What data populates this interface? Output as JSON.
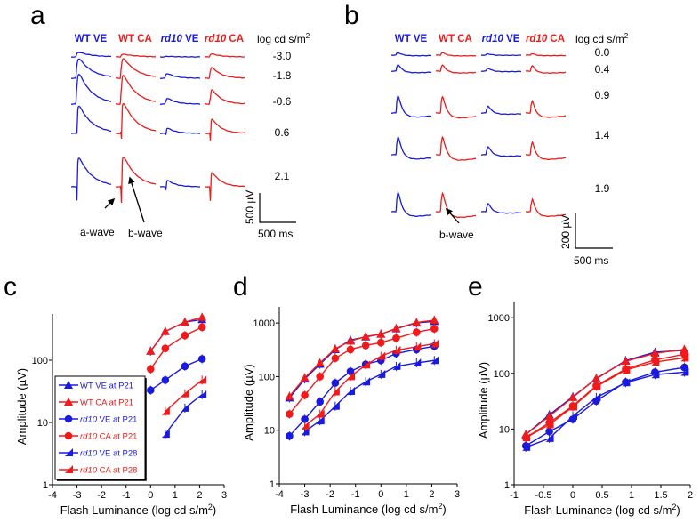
{
  "colors": {
    "blue": "#1a1adf",
    "red": "#f01a1a",
    "black": "#000000"
  },
  "panels": {
    "a": {
      "letter": "a",
      "headers": [
        {
          "italic": "",
          "text": "WT VE",
          "color": "#1a1adf"
        },
        {
          "italic": "",
          "text": "WT CA",
          "color": "#f01a1a"
        },
        {
          "italic": "rd10",
          "text": " VE",
          "color": "#1a1adf"
        },
        {
          "italic": "rd10",
          "text": " CA",
          "color": "#f01a1a"
        }
      ],
      "unit_label": "log cd s/m",
      "unit_sup": "2",
      "levels": [
        "-3.0",
        "-1.8",
        "-0.6",
        "0.6",
        "2.1"
      ],
      "annotations": [
        "a-wave",
        "b-wave"
      ],
      "scale_v": "500 µV",
      "scale_h": "500 ms"
    },
    "b": {
      "letter": "b",
      "headers": [
        {
          "italic": "",
          "text": "WT VE",
          "color": "#1a1adf"
        },
        {
          "italic": "",
          "text": "WT CA",
          "color": "#f01a1a"
        },
        {
          "italic": "rd10",
          "text": " VE",
          "color": "#1a1adf"
        },
        {
          "italic": "rd10",
          "text": " CA",
          "color": "#f01a1a"
        }
      ],
      "unit_label": "log cd s/m",
      "unit_sup": "2",
      "levels": [
        "0.0",
        "0.4",
        "0.9",
        "1.4",
        "1.9"
      ],
      "annotations": [
        "b-wave"
      ],
      "scale_v": "200 µV",
      "scale_h": "500 ms"
    }
  },
  "chart_data": [
    {
      "panel": "c",
      "type": "line",
      "yscale": "log",
      "xlabel": "Flash Luminance (log cd s/m",
      "xlabel_sup": "2",
      "xlabel_end": ")",
      "ylabel": "Amplitude (µV)",
      "xlim": [
        -4,
        3
      ],
      "ylim": [
        1,
        570
      ],
      "xticks": [
        "-4",
        "-3",
        "-2",
        "-1",
        "0",
        "1",
        "2",
        "3"
      ],
      "yticks": [
        "1",
        "10",
        "100"
      ],
      "legend": "bottom-left",
      "series": [
        {
          "name": "WT VE at P21",
          "italic": "",
          "label": "WT VE at P21",
          "color": "#1a1adf",
          "marker": "triangle",
          "x": [
            0,
            0.6,
            1.4,
            2.1
          ],
          "y": [
            140,
            290,
            410,
            450
          ]
        },
        {
          "name": "WT CA at P21",
          "italic": "",
          "label": "WT CA at P21",
          "color": "#f01a1a",
          "marker": "triangle",
          "x": [
            0,
            0.6,
            1.4,
            2.1
          ],
          "y": [
            140,
            290,
            410,
            490
          ]
        },
        {
          "name": "rd10 VE at P21",
          "italic": "rd10",
          "label": " VE at P21",
          "color": "#1a1adf",
          "marker": "circle",
          "x": [
            0,
            0.6,
            1.4,
            2.1
          ],
          "y": [
            33,
            48,
            80,
            105
          ]
        },
        {
          "name": "rd10 CA at P21",
          "italic": "rd10",
          "label": " CA at P21",
          "color": "#f01a1a",
          "marker": "circle",
          "x": [
            0,
            0.6,
            1.4,
            2.1
          ],
          "y": [
            72,
            155,
            250,
            340
          ]
        },
        {
          "name": "rd10 VE at P28",
          "italic": "rd10",
          "label": " VE at P28",
          "color": "#1a1adf",
          "marker": "flag",
          "x": [
            0.6,
            1.4,
            2.1
          ],
          "y": [
            6.5,
            17,
            28
          ]
        },
        {
          "name": "rd10 CA at P28",
          "italic": "rd10",
          "label": " CA at P28",
          "color": "#f01a1a",
          "marker": "flag",
          "x": [
            0.6,
            1.4,
            2.1
          ],
          "y": [
            15,
            29,
            48
          ]
        }
      ]
    },
    {
      "panel": "d",
      "type": "line",
      "yscale": "log",
      "xlabel": "Flash Luminance (log cd s/m",
      "xlabel_sup": "2",
      "xlabel_end": ")",
      "ylabel": "Amplitude (µV)",
      "xlim": [
        -4,
        3
      ],
      "ylim": [
        1,
        2000
      ],
      "xticks": [
        "-4",
        "-3",
        "-2",
        "-1",
        "0",
        "1",
        "2",
        "3"
      ],
      "yticks": [
        "1",
        "10",
        "100",
        "1000"
      ],
      "series": [
        {
          "name": "WT VE at P21",
          "color": "#1a1adf",
          "marker": "triangle",
          "x": [
            -3.6,
            -3,
            -2.4,
            -1.8,
            -1.2,
            -0.6,
            0,
            0.6,
            1.4,
            2.1
          ],
          "y": [
            40,
            90,
            170,
            320,
            480,
            550,
            620,
            780,
            1000,
            1070
          ]
        },
        {
          "name": "WT CA at P21",
          "color": "#f01a1a",
          "marker": "triangle",
          "x": [
            -3.6,
            -3,
            -2.4,
            -1.8,
            -1.2,
            -0.6,
            0,
            0.6,
            1.4,
            2.1
          ],
          "y": [
            43,
            95,
            180,
            330,
            460,
            560,
            620,
            790,
            1020,
            1130
          ]
        },
        {
          "name": "rd10 VE at P21",
          "color": "#1a1adf",
          "marker": "circle",
          "x": [
            -3.6,
            -3,
            -2.4,
            -1.8,
            -1.2,
            -0.6,
            0,
            0.6,
            1.4,
            2.1
          ],
          "y": [
            7.8,
            16,
            34,
            76,
            125,
            170,
            200,
            270,
            320,
            370
          ]
        },
        {
          "name": "rd10 CA at P21",
          "color": "#f01a1a",
          "marker": "circle",
          "x": [
            -3.6,
            -3,
            -2.4,
            -1.8,
            -1.2,
            -0.6,
            0,
            0.6,
            1.4,
            2.1
          ],
          "y": [
            20,
            45,
            100,
            220,
            320,
            380,
            430,
            520,
            670,
            780
          ]
        },
        {
          "name": "rd10 VE at P28",
          "color": "#1a1adf",
          "marker": "flag",
          "x": [
            -3,
            -2.4,
            -1.8,
            -1.2,
            -0.6,
            0,
            0.6,
            1.4,
            2.1
          ],
          "y": [
            9.4,
            15,
            28,
            53,
            80,
            110,
            155,
            180,
            200
          ]
        },
        {
          "name": "rd10 CA at P28",
          "color": "#f01a1a",
          "marker": "flag",
          "x": [
            -3,
            -2.4,
            -1.8,
            -1.2,
            -0.6,
            0,
            0.6,
            1.4,
            2.1
          ],
          "y": [
            12,
            20,
            52,
            100,
            165,
            240,
            310,
            360,
            410
          ]
        }
      ]
    },
    {
      "panel": "e",
      "type": "line",
      "yscale": "log",
      "xlabel": "Flash Luminance (log cd s/m",
      "xlabel_sup": "2",
      "xlabel_end": ")",
      "ylabel": "Amplitude (µV)",
      "xlim": [
        -1,
        2
      ],
      "ylim": [
        1,
        2200
      ],
      "xticks": [
        "-1",
        "-0.5",
        "0",
        "0.5",
        "1",
        "1.5",
        "2"
      ],
      "yticks": [
        "1",
        "10",
        "100",
        "1000"
      ],
      "series": [
        {
          "name": "WT VE at P21",
          "color": "#1a1adf",
          "marker": "triangle",
          "x": [
            -0.8,
            -0.4,
            0,
            0.4,
            0.9,
            1.4,
            1.9
          ],
          "y": [
            8,
            18,
            38,
            80,
            170,
            240,
            260
          ]
        },
        {
          "name": "WT CA at P21",
          "color": "#f01a1a",
          "marker": "triangle",
          "x": [
            -0.8,
            -0.4,
            0,
            0.4,
            0.9,
            1.4,
            1.9
          ],
          "y": [
            8,
            17,
            37,
            82,
            165,
            230,
            270
          ]
        },
        {
          "name": "rd10 VE at P21",
          "color": "#1a1adf",
          "marker": "circle",
          "x": [
            -0.8,
            -0.4,
            0,
            0.4,
            0.9,
            1.4,
            1.9
          ],
          "y": [
            5,
            9,
            15,
            32,
            70,
            105,
            128
          ]
        },
        {
          "name": "rd10 CA at P21",
          "color": "#f01a1a",
          "marker": "circle",
          "x": [
            -0.8,
            -0.4,
            0,
            0.4,
            0.9,
            1.4,
            1.9
          ],
          "y": [
            7,
            13,
            26,
            60,
            120,
            175,
            220
          ]
        },
        {
          "name": "rd10 VE at P28",
          "color": "#1a1adf",
          "marker": "flag",
          "x": [
            -0.8,
            -0.4,
            0,
            0.4,
            0.9,
            1.4,
            1.9
          ],
          "y": [
            4.7,
            6.8,
            17,
            37,
            68,
            95,
            105
          ]
        },
        {
          "name": "rd10 CA at P28",
          "color": "#f01a1a",
          "marker": "flag",
          "x": [
            -0.8,
            -0.4,
            0,
            0.4,
            0.9,
            1.4,
            1.9
          ],
          "y": [
            7,
            12,
            25,
            58,
            115,
            160,
            190
          ]
        }
      ]
    }
  ]
}
